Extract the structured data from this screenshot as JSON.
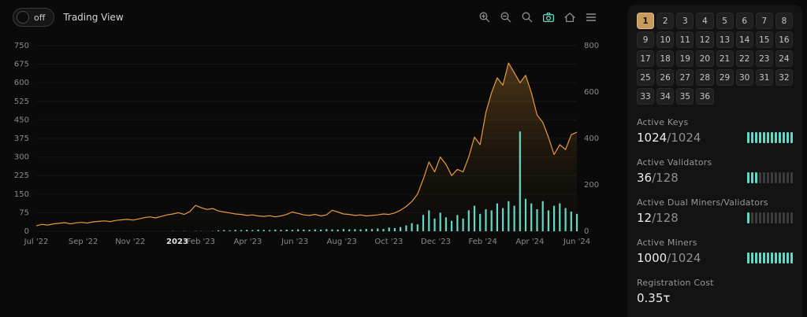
{
  "header": {
    "toggle_label": "off",
    "title": "Trading View"
  },
  "toolbar": {
    "icons": [
      "zoom-in",
      "zoom-out",
      "zoom-reset",
      "camera",
      "home",
      "menu"
    ]
  },
  "chart_data": {
    "type": "line+bar",
    "x_range_months": 23,
    "x_ticks": [
      {
        "m": 0,
        "label": "Jul '22"
      },
      {
        "m": 2,
        "label": "Sep '22"
      },
      {
        "m": 4,
        "label": "Nov '22"
      },
      {
        "m": 6,
        "label": "2023",
        "strong": true
      },
      {
        "m": 7,
        "label": "Feb '23"
      },
      {
        "m": 9,
        "label": "Apr '23"
      },
      {
        "m": 11,
        "label": "Jun '23"
      },
      {
        "m": 13,
        "label": "Aug '23"
      },
      {
        "m": 15,
        "label": "Oct '23"
      },
      {
        "m": 17,
        "label": "Dec '23"
      },
      {
        "m": 19,
        "label": "Feb '24"
      },
      {
        "m": 21,
        "label": "Apr '24"
      },
      {
        "m": 23,
        "label": "Jun '24"
      }
    ],
    "left_axis": {
      "range": [
        0,
        750
      ],
      "ticks": [
        0,
        75,
        150,
        225,
        300,
        375,
        450,
        525,
        600,
        675,
        750
      ]
    },
    "right_axis": {
      "range": [
        0,
        800
      ],
      "ticks": [
        0,
        200,
        400,
        600,
        800
      ]
    },
    "series": [
      {
        "name": "price",
        "type": "line",
        "axis": "left",
        "color": "#e79b3c",
        "values": [
          22,
          28,
          25,
          30,
          32,
          35,
          30,
          34,
          36,
          33,
          38,
          40,
          42,
          39,
          44,
          46,
          48,
          45,
          50,
          55,
          58,
          54,
          60,
          66,
          70,
          75,
          68,
          80,
          105,
          95,
          88,
          92,
          82,
          78,
          74,
          70,
          68,
          64,
          66,
          62,
          60,
          63,
          58,
          62,
          68,
          78,
          72,
          66,
          64,
          68,
          62,
          66,
          85,
          78,
          70,
          68,
          64,
          66,
          62,
          64,
          66,
          70,
          68,
          74,
          85,
          100,
          120,
          150,
          210,
          280,
          240,
          300,
          270,
          225,
          250,
          240,
          300,
          380,
          350,
          480,
          560,
          620,
          590,
          680,
          640,
          600,
          630,
          560,
          470,
          440,
          380,
          310,
          350,
          330,
          390,
          400
        ]
      },
      {
        "name": "volume",
        "type": "bar",
        "axis": "right",
        "color": "#63d8c4",
        "values": [
          0,
          0,
          0,
          0,
          0,
          0,
          0,
          0,
          0,
          0,
          0,
          0,
          0,
          0,
          0,
          0,
          0,
          0,
          0,
          0,
          0,
          0,
          0,
          0,
          1,
          0,
          1,
          0,
          1,
          1,
          0,
          1,
          4,
          5,
          4,
          6,
          5,
          6,
          5,
          7,
          6,
          5,
          7,
          6,
          7,
          6,
          8,
          7,
          6,
          8,
          7,
          9,
          8,
          7,
          9,
          8,
          9,
          8,
          10,
          9,
          12,
          10,
          16,
          14,
          18,
          25,
          35,
          30,
          70,
          90,
          55,
          80,
          60,
          45,
          70,
          55,
          90,
          110,
          75,
          95,
          90,
          120,
          100,
          130,
          110,
          430,
          140,
          120,
          95,
          130,
          90,
          110,
          120,
          100,
          85,
          75
        ]
      }
    ]
  },
  "panel": {
    "grid": {
      "numbers": [
        1,
        2,
        3,
        4,
        5,
        6,
        7,
        8,
        9,
        10,
        11,
        12,
        13,
        14,
        15,
        16,
        17,
        18,
        19,
        20,
        21,
        22,
        23,
        24,
        25,
        26,
        27,
        28,
        29,
        30,
        31,
        32,
        33,
        34,
        35,
        36
      ],
      "selected": 1
    },
    "stats": [
      {
        "label": "Active Keys",
        "value": "1024",
        "sep": "/",
        "total": "1024",
        "bar": {
          "segments": 12,
          "filled": 12
        }
      },
      {
        "label": "Active Validators",
        "value": "36",
        "sep": "/",
        "total": "128",
        "bar": {
          "segments": 12,
          "filled": 3
        }
      },
      {
        "label": "Active Dual Miners/Validators",
        "value": "12",
        "sep": "/",
        "total": "128",
        "bar": {
          "segments": 12,
          "filled": 1
        }
      },
      {
        "label": "Active Miners",
        "value": "1000",
        "sep": "/",
        "total": "1024",
        "bar": {
          "segments": 12,
          "filled": 12
        }
      },
      {
        "label": "Registration Cost",
        "value": "0.35τ",
        "sep": "",
        "total": "",
        "bar": null
      }
    ],
    "colors": {
      "accent": "#e79b3c",
      "teal": "#63d8c4"
    }
  }
}
